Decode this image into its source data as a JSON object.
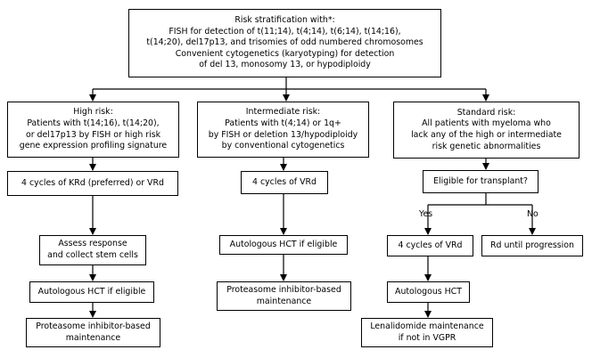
{
  "top": {
    "lines": [
      "Risk stratification with*:",
      "FISH for detection of t(11;14), t(4;14), t(6;14), t(14;16),",
      "t(14;20), del17p13, and trisomies of odd numbered chromosomes",
      "Convenient cytogenetics (karyotyping) for detection",
      "of del 13, monosomy 13, or hypodiploidy"
    ]
  },
  "high": {
    "risk": [
      "High risk:",
      "Patients with t(14;16), t(14;20),",
      "or del17p13 by FISH or high risk",
      "gene expression profiling signature"
    ],
    "step1": "4 cycles of KRd (preferred) or VRd",
    "step2": [
      "Assess response",
      "and collect stem cells"
    ],
    "step3": "Autologous HCT if eligible",
    "step4": [
      "Proteasome inhibitor-based",
      "maintenance"
    ]
  },
  "intermediate": {
    "risk": [
      "Intermediate risk:",
      "Patients with t(4;14) or 1q+",
      "by FISH or deletion 13/hypodiploidy",
      "by conventional cytogenetics"
    ],
    "step1": "4 cycles of VRd",
    "step2": "Autologous HCT if eligible",
    "step3": [
      "Proteasome inhibitor-based",
      "maintenance"
    ]
  },
  "standard": {
    "risk": [
      "Standard risk:",
      "All patients with myeloma who",
      "lack any of the high or intermediate",
      "risk genetic abnormalities"
    ],
    "eligible": "Eligible for transplant?",
    "yes_label": "Yes",
    "no_label": "No",
    "yes_step1": "4 cycles of VRd",
    "yes_step2": "Autologous HCT",
    "yes_step3": [
      "Lenalidomide maintenance",
      "if not in VGPR"
    ],
    "no_step1": "Rd until progression"
  }
}
